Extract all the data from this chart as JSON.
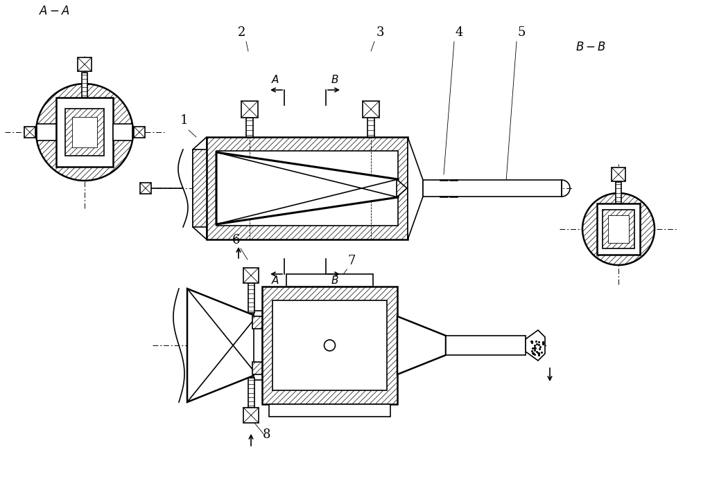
{
  "background_color": "#ffffff",
  "line_color": "#000000",
  "fig_w": 10.24,
  "fig_h": 7.21,
  "dpi": 100,
  "lw1": 0.6,
  "lw2": 1.2,
  "lw3": 1.8,
  "lw4": 2.2,
  "hatch_lw": 0.5
}
